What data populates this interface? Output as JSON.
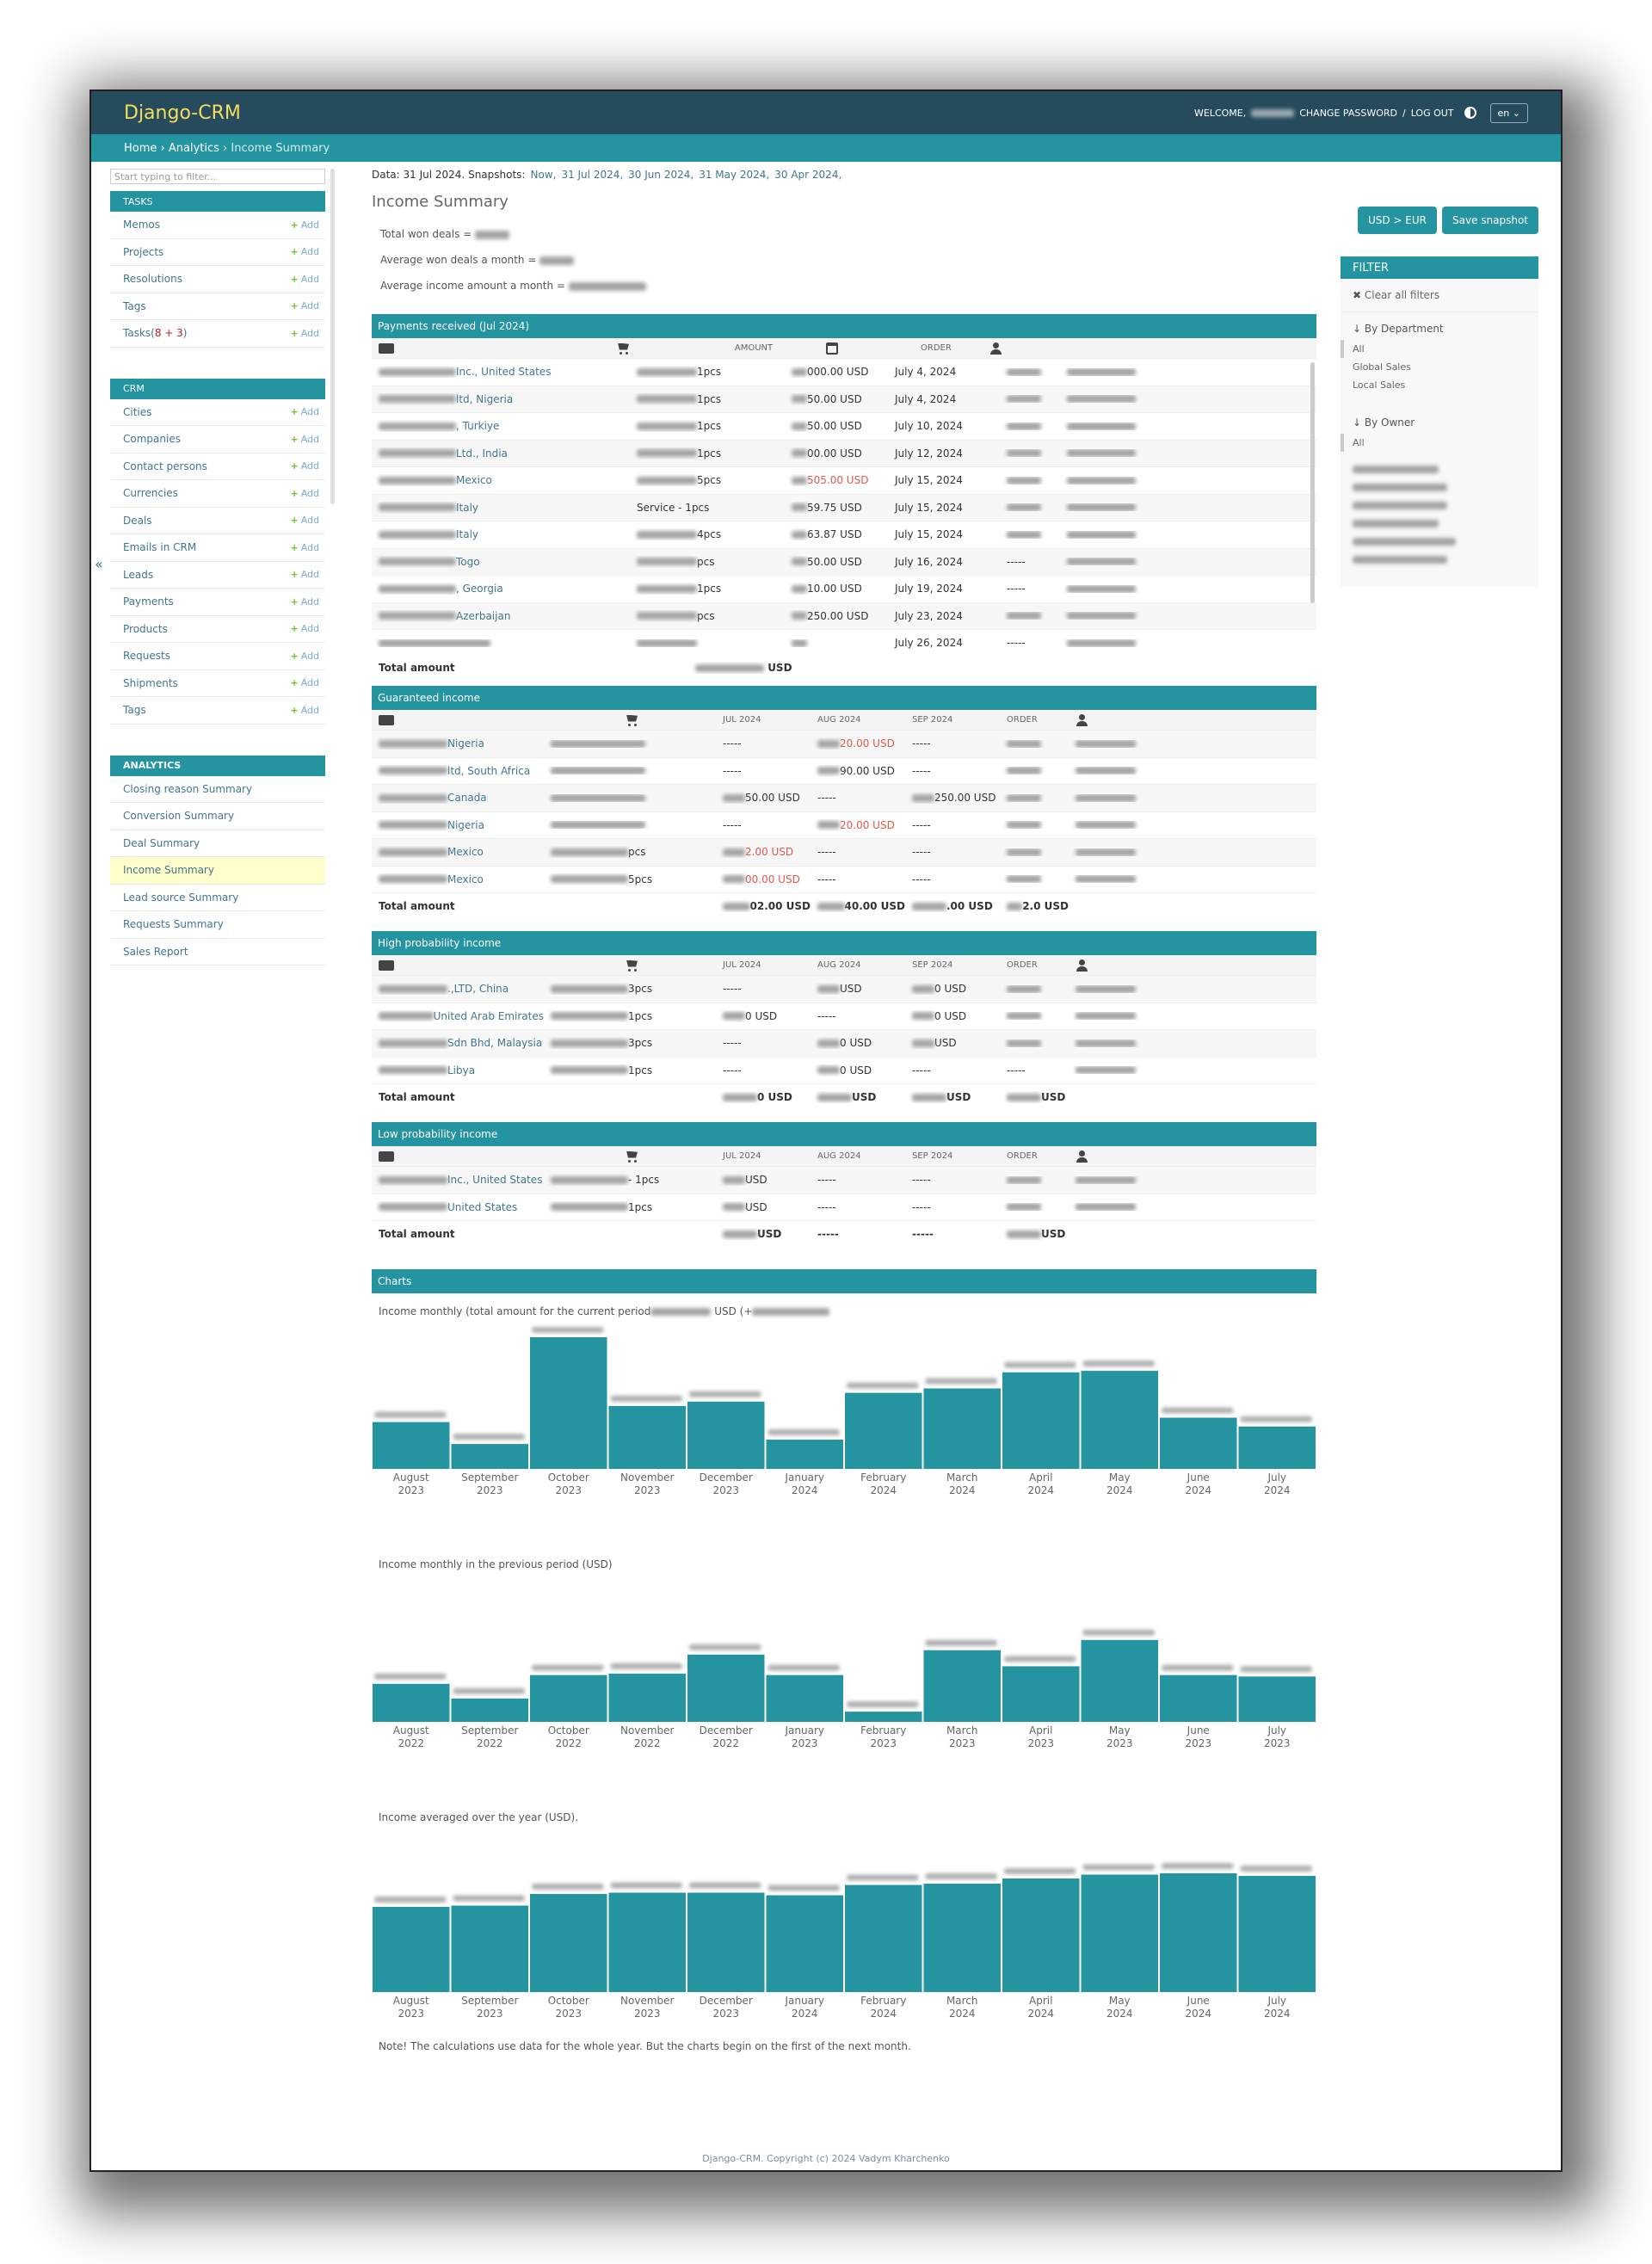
{
  "header": {
    "brand": "Django-CRM",
    "welcome": "WELCOME,",
    "change_password": "CHANGE PASSWORD",
    "sep": "/",
    "logout": "LOG OUT",
    "lang": "en"
  },
  "breadcrumb": {
    "home": "Home",
    "analytics": "Analytics",
    "current": "Income Summary",
    "sep": "›"
  },
  "sidebar": {
    "filter_placeholder": "Start typing to filter...",
    "collapse": "«",
    "add": "Add",
    "tasks": {
      "title": "TASKS",
      "items": [
        "Memos",
        "Projects",
        "Resolutions",
        "Tags",
        "Tasks"
      ],
      "tasks_count": "8 + 3"
    },
    "crm": {
      "title": "CRM",
      "items": [
        "Cities",
        "Companies",
        "Contact persons",
        "Currencies",
        "Deals",
        "Emails in CRM",
        "Leads",
        "Payments",
        "Products",
        "Requests",
        "Shipments",
        "Tags"
      ]
    },
    "analytics": {
      "title": "ANALYTICS",
      "items": [
        "Closing reason Summary",
        "Conversion Summary",
        "Deal Summary",
        "Income Summary",
        "Lead source Summary",
        "Requests Summary",
        "Sales Report"
      ]
    }
  },
  "snapshots": {
    "data_label": "Data: 31 Jul 2024.",
    "label": "Snapshots:",
    "links": [
      "Now,",
      "31 Jul 2024,",
      "30 Jun 2024,",
      "31 May 2024,",
      "30 Apr 2024,"
    ]
  },
  "page_title": "Income Summary",
  "stats": {
    "won": "Total won deals =",
    "avg_deals": "Average won deals a month =",
    "avg_income": "Average income amount a month ="
  },
  "buttons": {
    "currency": "USD > EUR",
    "save": "Save snapshot"
  },
  "filter": {
    "title": "FILTER",
    "clear": "Clear all filters",
    "dept": "↓ By Department",
    "dept_options": [
      "All",
      "Global Sales",
      "Local Sales"
    ],
    "owner": "↓ By Owner",
    "owner_options": [
      "All"
    ]
  },
  "payments": {
    "title": "Payments received (Jul 2024)",
    "amount_label": "AMOUNT",
    "order_label": "ORDER",
    "total_label": "Total amount",
    "total_value": "USD",
    "rows": [
      {
        "company": "Inc., United States",
        "product": "1pcs",
        "amount": "000.00 USD",
        "date": "July 4, 2024",
        "order": ""
      },
      {
        "company": "ltd, Nigeria",
        "product": "1pcs",
        "amount": "50.00 USD",
        "date": "July 4, 2024",
        "order": ""
      },
      {
        "company": ", Turkiye",
        "product": "1pcs",
        "amount": "50.00 USD",
        "date": "July 10, 2024",
        "order": ""
      },
      {
        "company": "Ltd., India",
        "product": "1pcs",
        "amount": "00.00 USD",
        "date": "July 12, 2024",
        "order": ""
      },
      {
        "company": "Mexico",
        "product": "5pcs",
        "amount": "505.00 USD",
        "date": "July 15, 2024",
        "order": "",
        "red": true
      },
      {
        "company": "Italy",
        "product": "Service - 1pcs",
        "amount": "59.75 USD",
        "date": "July 15, 2024",
        "order": ""
      },
      {
        "company": "Italy",
        "product": "4pcs",
        "amount": "63.87 USD",
        "date": "July 15, 2024",
        "order": ""
      },
      {
        "company": "Togo",
        "product": "pcs",
        "amount": "50.00 USD",
        "date": "July 16, 2024",
        "order": "-----"
      },
      {
        "company": ", Georgia",
        "product": "1pcs",
        "amount": "10.00 USD",
        "date": "July 19, 2024",
        "order": "-----"
      },
      {
        "company": "Azerbaijan",
        "product": "pcs",
        "amount": "250.00 USD",
        "date": "July 23, 2024",
        "order": ""
      },
      {
        "company": "",
        "product": "",
        "amount": "",
        "date": "July 26, 2024",
        "order": "-----"
      }
    ]
  },
  "guaranteed": {
    "title": "Guaranteed income",
    "months": [
      "JUL 2024",
      "AUG 2024",
      "SEP 2024"
    ],
    "order_label": "ORDER",
    "total_label": "Total amount",
    "totals": [
      "02.00 USD",
      "40.00 USD",
      ".00 USD",
      "2.0 USD"
    ],
    "rows": [
      {
        "company": "Nigeria",
        "product": "",
        "m1": "-----",
        "m2": "20.00 USD",
        "m3": "-----",
        "r2": true
      },
      {
        "company": "ltd, South Africa",
        "product": "",
        "m1": "-----",
        "m2": "90.00 USD",
        "m3": "-----"
      },
      {
        "company": "Canada",
        "product": "",
        "m1": "50.00 USD",
        "m2": "-----",
        "m3": "250.00 USD"
      },
      {
        "company": "Nigeria",
        "product": "",
        "m1": "-----",
        "m2": "20.00 USD",
        "m3": "-----",
        "r2": true
      },
      {
        "company": "Mexico",
        "product": "pcs",
        "m1": "2.00 USD",
        "m2": "-----",
        "m3": "-----",
        "r1": true
      },
      {
        "company": "Mexico",
        "product": "5pcs",
        "m1": "00.00 USD",
        "m2": "-----",
        "m3": "-----",
        "r1": true
      }
    ]
  },
  "high": {
    "title": "High probability income",
    "months": [
      "JUL 2024",
      "AUG 2024",
      "SEP 2024"
    ],
    "order_label": "ORDER",
    "total_label": "Total amount",
    "totals": [
      "0 USD",
      "USD",
      "USD",
      "USD"
    ],
    "rows": [
      {
        "company": ".,LTD, China",
        "product": "3pcs",
        "m1": "-----",
        "m2": "USD",
        "m3": "0 USD"
      },
      {
        "company": "United Arab Emirates",
        "product": "1pcs",
        "m1": "0 USD",
        "m2": "-----",
        "m3": "0 USD"
      },
      {
        "company": "Sdn Bhd, Malaysia",
        "product": "3pcs",
        "m1": "-----",
        "m2": "0 USD",
        "m3": "USD"
      },
      {
        "company": "Libya",
        "product": "1pcs",
        "m1": "-----",
        "m2": "0 USD",
        "m3": "-----",
        "order": "-----"
      }
    ]
  },
  "low": {
    "title": "Low probability income",
    "months": [
      "JUL 2024",
      "AUG 2024",
      "SEP 2024"
    ],
    "order_label": "ORDER",
    "total_label": "Total amount",
    "totals": [
      "USD",
      "-----",
      "-----",
      "USD"
    ],
    "rows": [
      {
        "company": "Inc., United States",
        "product": "- 1pcs",
        "m1": "USD",
        "m2": "-----",
        "m3": "-----"
      },
      {
        "company": "United States",
        "product": "1pcs",
        "m1": "USD",
        "m2": "-----",
        "m3": "-----"
      }
    ]
  },
  "charts_title": "Charts",
  "chart_titles": [
    "Income monthly (total amount for the current period",
    "USD (+",
    "Income monthly in the previous period (USD)",
    "Income averaged over the year (USD)."
  ],
  "note": "Note! The calculations use data for the whole year. But the charts begin on the first of the next month.",
  "footer": "Django-CRM. Copyright (c) 2024 Vadym Kharchenko",
  "chart_data": [
    {
      "type": "bar",
      "categories": [
        "August 2023",
        "September 2023",
        "October 2023",
        "November 2023",
        "December 2023",
        "January 2024",
        "February 2024",
        "March 2024",
        "April 2024",
        "May 2024",
        "June 2024",
        "July 2024"
      ],
      "values": [
        32,
        17,
        90,
        43,
        46,
        20,
        52,
        55,
        66,
        67,
        35,
        29
      ],
      "color": "#2494a1"
    },
    {
      "type": "bar",
      "categories": [
        "August 2022",
        "September 2022",
        "October 2022",
        "November 2022",
        "December 2022",
        "January 2023",
        "February 2023",
        "March 2023",
        "April 2023",
        "May 2023",
        "June 2023",
        "July 2023"
      ],
      "values": [
        26,
        16,
        32,
        33,
        46,
        32,
        7,
        49,
        38,
        56,
        32,
        31
      ],
      "color": "#2494a1"
    },
    {
      "type": "bar",
      "categories": [
        "August 2023",
        "September 2023",
        "October 2023",
        "November 2023",
        "December 2023",
        "January 2024",
        "February 2024",
        "March 2024",
        "April 2024",
        "May 2024",
        "June 2024",
        "July 2024"
      ],
      "values": [
        66,
        67,
        76,
        77,
        77,
        75,
        83,
        84,
        88,
        91,
        92,
        90
      ],
      "color": "#2494a1"
    }
  ]
}
